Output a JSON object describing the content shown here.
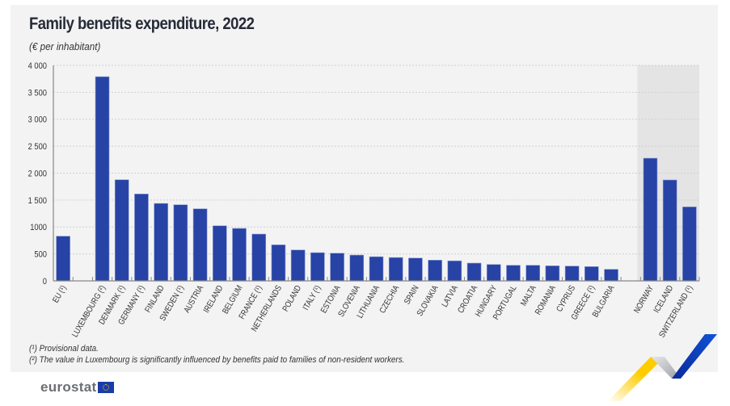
{
  "header": {
    "title": "Family benefits expenditure, 2022",
    "subtitle": "(€ per inhabitant)"
  },
  "notes": [
    "(¹) Provisional data.",
    "(²) The value in Luxembourg is significantly influenced by benefits paid to families of non-resident workers."
  ],
  "branding": {
    "logo_text": "eurostat",
    "logo_icon": "eu-flag-icon"
  },
  "colors": {
    "bar": "#2743a5",
    "panel": "#f3f3f3",
    "shaded_group": "#e4e4e4",
    "grid": "#cfcfcf",
    "ribbon_yellow": "#ffcc00",
    "ribbon_blue": "#0e47cb"
  },
  "chart_data": {
    "type": "bar",
    "title": "Family benefits expenditure, 2022",
    "subtitle": "(€ per inhabitant)",
    "xlabel": "",
    "ylabel": "",
    "ylim": [
      0,
      4000
    ],
    "yticks": [
      0,
      500,
      1000,
      1500,
      2000,
      2500,
      3000,
      3500,
      4000
    ],
    "ytick_labels": [
      "0",
      "500",
      "1000",
      "1 500",
      "2 000",
      "2 500",
      "3 000",
      "3 500",
      "4 000"
    ],
    "grid": true,
    "legend": "none",
    "categories": [
      "EU (¹)",
      "",
      "LUXEMBOURG (²)",
      "DENMARK (¹)",
      "GERMANY (¹)",
      "FINLAND",
      "SWEDEN (¹)",
      "AUSTRIA",
      "IRELAND",
      "BELGIUM",
      "FRANCE (¹)",
      "NETHERLANDS",
      "POLAND",
      "ITALY (¹)",
      "ESTONIA",
      "SLOVENIA",
      "LITHUANIA",
      "CZECHIA",
      "SPAIN",
      "SLOVAKIA",
      "LATVIA",
      "CROATIA",
      "HUNGARY",
      "PORTUGAL",
      "MALTA",
      "ROMANIA",
      "CYPRUS",
      "GREECE (¹)",
      "BULGARIA",
      "",
      "NORWAY",
      "ICELAND",
      "SWITZERLAND (¹)"
    ],
    "values": [
      830,
      null,
      3790,
      1877,
      1613,
      1438,
      1413,
      1338,
      1023,
      974,
      869,
      669,
      574,
      524,
      514,
      479,
      449,
      434,
      424,
      385,
      372,
      330,
      305,
      290,
      290,
      280,
      275,
      265,
      215,
      null,
      2277,
      1873,
      1374
    ],
    "shaded_group": [
      "NORWAY",
      "ICELAND",
      "SWITZERLAND (¹)"
    ]
  }
}
